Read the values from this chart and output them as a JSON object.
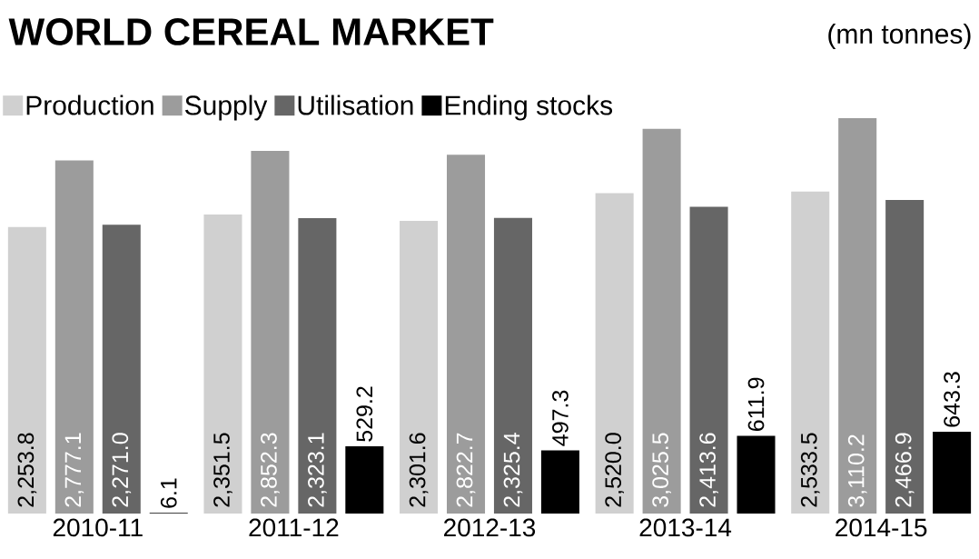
{
  "chart_data": {
    "type": "bar",
    "title": "WORLD CEREAL MARKET",
    "subtitle": "(mn tonnes)",
    "categories": [
      "2010-11",
      "2011-12",
      "2012-13",
      "2013-14",
      "2014-15"
    ],
    "series": [
      {
        "name": "Production",
        "color": "#d0d0d0",
        "values": [
          2253.8,
          2351.5,
          2301.6,
          2520.0,
          2533.5
        ],
        "value_labels": [
          "2,253.8",
          "2,351.5",
          "2,301.6",
          "2,520.0",
          "2,533.5"
        ]
      },
      {
        "name": "Supply",
        "color": "#9c9c9c",
        "values": [
          2777.1,
          2852.3,
          2822.7,
          3025.5,
          3110.2
        ],
        "value_labels": [
          "2,777.1",
          "2,852.3",
          "2,822.7",
          "3,025.5",
          "3,110.2"
        ]
      },
      {
        "name": "Utilisation",
        "color": "#666666",
        "values": [
          2271.0,
          2323.1,
          2325.4,
          2413.6,
          2466.9
        ],
        "value_labels": [
          "2,271.0",
          "2,323.1",
          "2,325.4",
          "2,413.6",
          "2,466.9"
        ]
      },
      {
        "name": "Ending stocks",
        "color": "#000000",
        "values": [
          6.1,
          529.2,
          497.3,
          611.9,
          643.3
        ],
        "value_labels": [
          "6.1",
          "529.2",
          "497.3",
          "611.9",
          "643.3"
        ]
      }
    ],
    "legend": "top left"
  }
}
